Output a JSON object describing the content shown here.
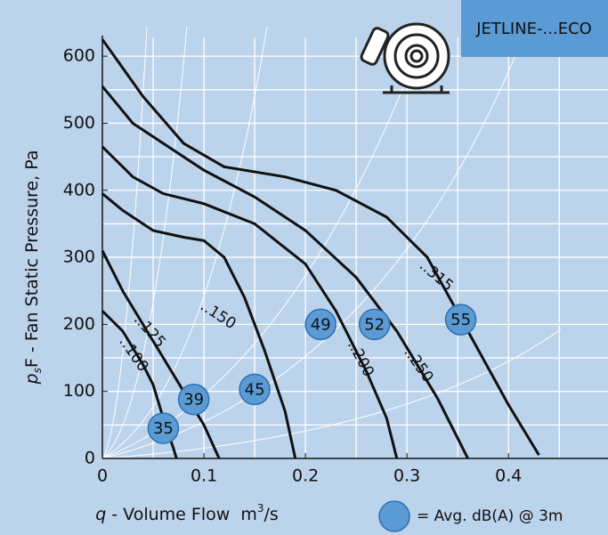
{
  "chart_data": {
    "type": "line",
    "title": "JETLINE-...ECO",
    "xlabel": {
      "var": "q",
      "text": " - Volume Flow  m",
      "sup": "3",
      "unit": "/s"
    },
    "ylabel": {
      "var": "p",
      "sub": "s",
      "text": "F - Fan Static Pressure, Pa"
    },
    "xlim": [
      0,
      0.498
    ],
    "ylim": [
      0,
      644
    ],
    "xticks": [
      0,
      0.1,
      0.2,
      0.3,
      0.4
    ],
    "yticks": [
      0,
      100,
      200,
      300,
      400,
      500,
      600
    ],
    "grid": true,
    "color": "#111111",
    "series": [
      {
        "name": "..100",
        "x": [
          0,
          0.02,
          0.04,
          0.05,
          0.06,
          0.07,
          0.073
        ],
        "values": [
          220,
          190,
          140,
          110,
          60,
          15,
          0
        ]
      },
      {
        "name": "..125",
        "x": [
          0,
          0.02,
          0.04,
          0.06,
          0.08,
          0.1,
          0.115
        ],
        "values": [
          310,
          250,
          200,
          150,
          100,
          50,
          0
        ]
      },
      {
        "name": "..150",
        "x": [
          0,
          0.02,
          0.05,
          0.08,
          0.1,
          0.12,
          0.14,
          0.16,
          0.18,
          0.19
        ],
        "values": [
          395,
          370,
          340,
          330,
          325,
          300,
          240,
          160,
          70,
          0
        ]
      },
      {
        "name": "..200",
        "x": [
          0,
          0.03,
          0.06,
          0.1,
          0.15,
          0.2,
          0.23,
          0.26,
          0.28,
          0.29
        ],
        "values": [
          465,
          420,
          395,
          380,
          350,
          290,
          220,
          130,
          60,
          0
        ]
      },
      {
        "name": "..250",
        "x": [
          0,
          0.03,
          0.07,
          0.1,
          0.15,
          0.2,
          0.25,
          0.29,
          0.33,
          0.36
        ],
        "values": [
          555,
          500,
          460,
          430,
          390,
          340,
          270,
          190,
          90,
          0
        ]
      },
      {
        "name": "..315",
        "x": [
          0,
          0.04,
          0.08,
          0.12,
          0.18,
          0.23,
          0.28,
          0.32,
          0.36,
          0.4,
          0.43
        ],
        "values": [
          625,
          540,
          470,
          435,
          420,
          400,
          360,
          300,
          190,
          80,
          5
        ]
      }
    ],
    "markers": {
      "color": "#5b9bd5",
      "x": [
        0.06,
        0.09,
        0.15,
        0.215,
        0.268,
        0.353
      ],
      "values": [
        45,
        88,
        103,
        200,
        200,
        207
      ],
      "labels": [
        35,
        39,
        45,
        49,
        52,
        55
      ]
    },
    "legend": "= Avg. dB(A) @ 3m"
  }
}
